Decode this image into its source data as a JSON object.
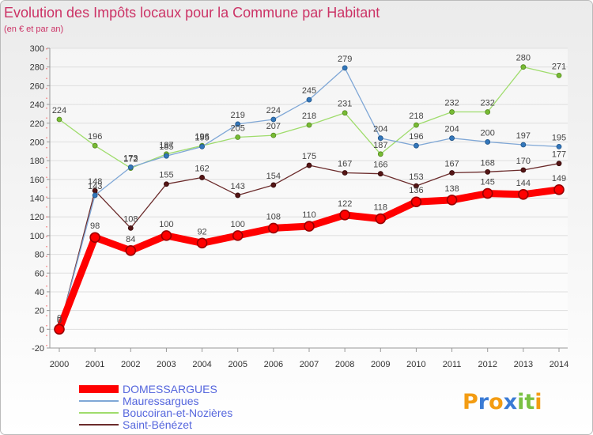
{
  "chart_data": {
    "type": "line",
    "title": "Evolution des Impôts locaux pour la Commune par Habitant",
    "subtitle": "(en € et par an)",
    "xlabel": "",
    "ylabel": "",
    "categories": [
      "2000",
      "2001",
      "2002",
      "2003",
      "2004",
      "2005",
      "2006",
      "2007",
      "2008",
      "2009",
      "2010",
      "2011",
      "2012",
      "2013",
      "2014"
    ],
    "ylim": [
      -20,
      300
    ],
    "yticks": [
      -20,
      0,
      20,
      40,
      60,
      80,
      100,
      120,
      140,
      160,
      180,
      200,
      220,
      240,
      260,
      280,
      300
    ],
    "grid": true,
    "legend": "bottom-left",
    "series": [
      {
        "name": "DOMESSARGUES",
        "color": "#ff0000",
        "marker_color": "#ff0000",
        "marker_stroke": "#990000",
        "values": [
          0,
          98,
          84,
          100,
          92,
          100,
          108,
          110,
          122,
          118,
          136,
          138,
          145,
          144,
          149
        ]
      },
      {
        "name": "Mauressargues",
        "color": "#7fa7d6",
        "marker_color": "#3377bb",
        "marker_stroke": "#225588",
        "values": [
          0,
          143,
          173,
          185,
          195,
          219,
          224,
          245,
          279,
          204,
          196,
          204,
          200,
          197,
          195
        ]
      },
      {
        "name": "Boucoiran-et-Nozières",
        "color": "#9fdc6c",
        "marker_color": "#77bb33",
        "marker_stroke": "#558822",
        "values": [
          224,
          196,
          172,
          187,
          196,
          205,
          207,
          218,
          231,
          187,
          218,
          232,
          232,
          280,
          271
        ]
      },
      {
        "name": "Saint-Bénézet",
        "color": "#6b2b2b",
        "marker_color": "#551515",
        "marker_stroke": "#330808",
        "values": [
          0,
          148,
          108,
          155,
          162,
          143,
          154,
          175,
          167,
          166,
          153,
          167,
          168,
          170,
          177
        ]
      }
    ]
  },
  "logo": {
    "text": "Proxiti",
    "colors": [
      "#f39c12",
      "#3a7bd5",
      "#f39c12",
      "#3a7bd5",
      "#7ac143",
      "#7ac143",
      "#f39c12"
    ]
  }
}
